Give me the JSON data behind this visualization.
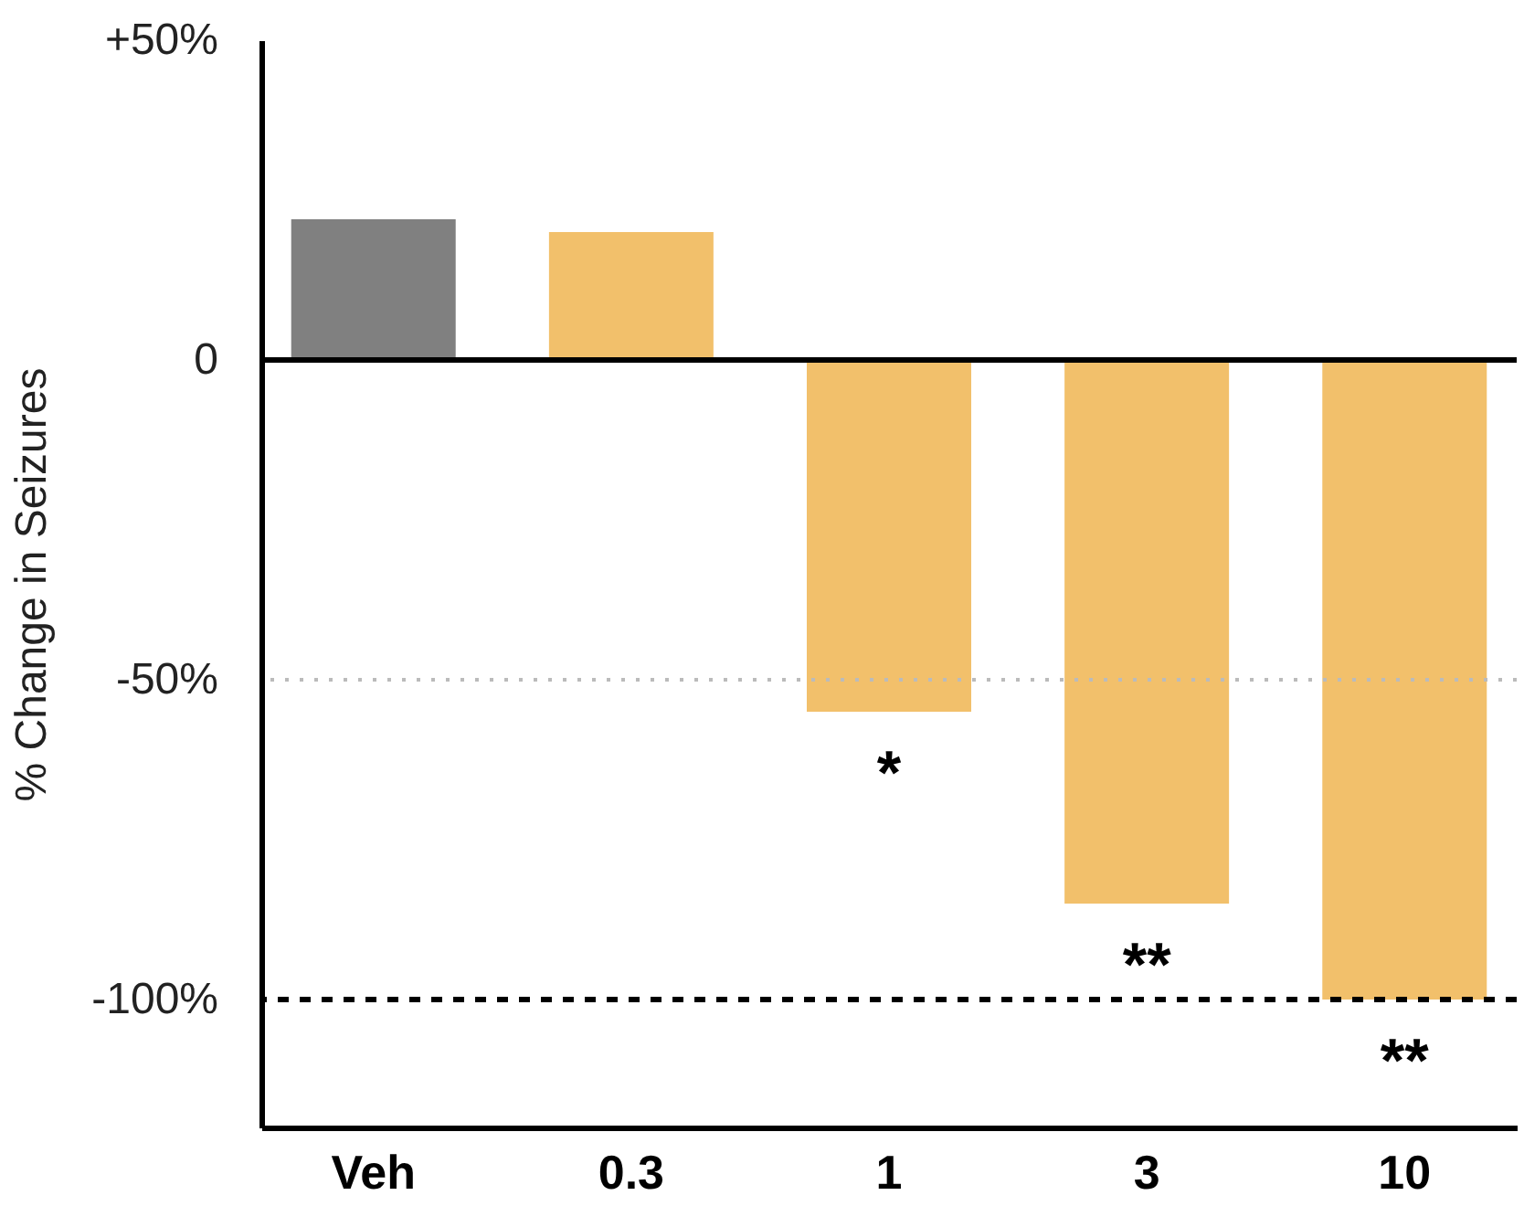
{
  "chart_data": {
    "type": "bar",
    "ylabel": "% Change in Seizures",
    "categories": [
      "Veh",
      "0.3",
      "1",
      "3",
      "10"
    ],
    "values": [
      22,
      20,
      -55,
      -85,
      -100
    ],
    "colors": [
      "#808080",
      "#f2c06b",
      "#f2c06b",
      "#f2c06b",
      "#f2c06b"
    ],
    "ylim": [
      -120,
      50
    ],
    "yticks": [
      {
        "value": 50,
        "label": "+50%"
      },
      {
        "value": 0,
        "label": "0"
      },
      {
        "value": -50,
        "label": "-50%"
      },
      {
        "value": -100,
        "label": "-100%"
      }
    ],
    "ref_lines": [
      {
        "axis": "y",
        "value": 0,
        "color": "#000000",
        "line_style": "solid"
      },
      {
        "axis": "y",
        "value": -50,
        "color": "#bbbbbb",
        "line_style": "dotted"
      },
      {
        "axis": "y",
        "value": -100,
        "color": "#000000",
        "line_style": "dashed"
      }
    ],
    "annotations": [
      {
        "text": "*",
        "x": "1",
        "y": -55
      },
      {
        "text": "**",
        "x": "3",
        "y": -85
      },
      {
        "text": "**",
        "x": "10",
        "y": -100
      }
    ],
    "grid": false
  }
}
